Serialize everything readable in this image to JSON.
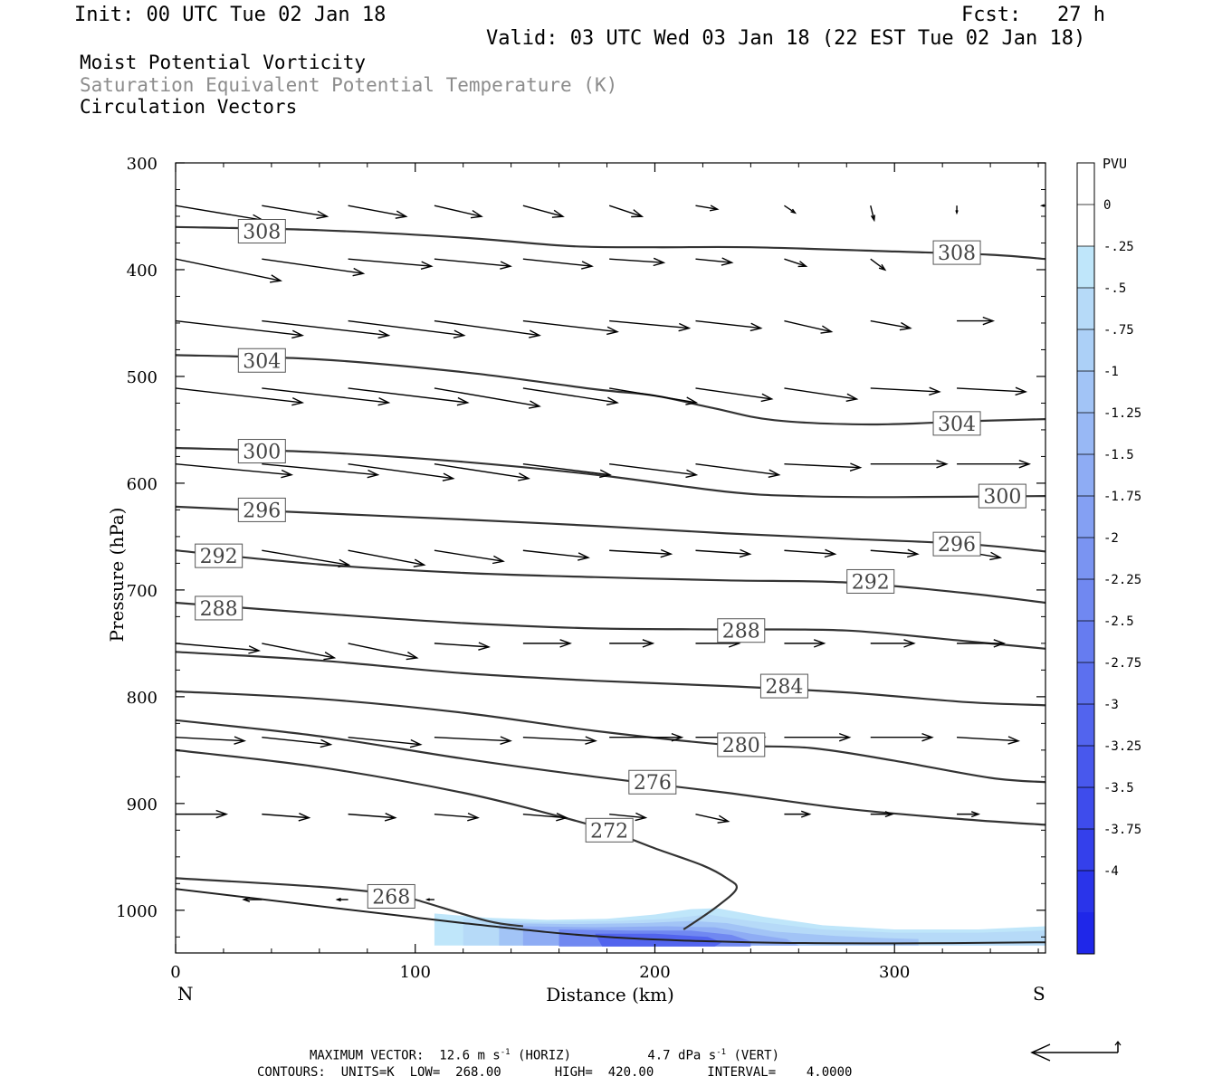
{
  "header": {
    "init": "Init: 00 UTC Tue 02 Jan 18",
    "fcst_label": "Fcst:",
    "fcst_value": "27 h",
    "valid": "Valid: 03 UTC Wed 03 Jan 18 (22 EST Tue 02 Jan 18)"
  },
  "fields": [
    {
      "name": "Moist Potential Vorticity",
      "color": "#000000"
    },
    {
      "name": "Saturation Equivalent Potential Temperature (K)",
      "color": "#8c8c8c"
    },
    {
      "name": "Circulation Vectors",
      "color": "#000000"
    }
  ],
  "footer": {
    "max_vector_label": "MAXIMUM VECTOR:",
    "horiz_value": "12.6 m s",
    "horiz_exp": "-1",
    "horiz_unit": "(HORIZ)",
    "vert_value": "4.7 dPa s",
    "vert_exp": "-1",
    "vert_unit": "(VERT)",
    "contours_line": "CONTOURS:  UNITS=K  LOW=  268.00       HIGH=  420.00       INTERVAL=    4.0000"
  },
  "chart_data": {
    "type": "cross-section",
    "xlabel": "Distance (km)",
    "ylabel": "Pressure (hPa)",
    "xlim": [
      0,
      363
    ],
    "ylim_pressure": [
      300,
      1040
    ],
    "x_ticks": [
      0,
      100,
      200,
      300
    ],
    "y_ticks": [
      300,
      400,
      500,
      600,
      700,
      800,
      900,
      1000
    ],
    "left_end_label": "N",
    "right_end_label": "S",
    "colorbar": {
      "title": "PVU",
      "labels": [
        "0",
        "-.25",
        "-.5",
        "-.75",
        "-1",
        "-1.25",
        "-1.5",
        "-1.75",
        "-2",
        "-2.25",
        "-2.5",
        "-2.75",
        "-3",
        "-3.25",
        "-3.5",
        "-3.75",
        "-4"
      ],
      "colors": [
        "#ffffff",
        "#ffffff",
        "#bfe6fa",
        "#b6daf8",
        "#acd0f7",
        "#a2c4f6",
        "#98b8f5",
        "#8eacf4",
        "#84a0f3",
        "#7a94f2",
        "#7088f1",
        "#667cf0",
        "#5c70ef",
        "#5264ee",
        "#4858ed",
        "#3e4cec",
        "#3440eb",
        "#2a34ea",
        "#1f27e9"
      ]
    },
    "theta_contours": [
      {
        "value": 308,
        "points": [
          [
            0,
            360
          ],
          [
            60,
            363
          ],
          [
            120,
            370
          ],
          [
            165,
            378
          ],
          [
            200,
            379
          ],
          [
            240,
            379
          ],
          [
            300,
            383
          ],
          [
            340,
            386
          ],
          [
            363,
            390
          ]
        ],
        "labels": [
          [
            36,
            364
          ],
          [
            326,
            384
          ]
        ]
      },
      {
        "value": 304,
        "points": [
          [
            0,
            480
          ],
          [
            60,
            484
          ],
          [
            120,
            496
          ],
          [
            175,
            512
          ],
          [
            200,
            518
          ],
          [
            225,
            530
          ],
          [
            250,
            541
          ],
          [
            290,
            545
          ],
          [
            330,
            542
          ],
          [
            363,
            540
          ]
        ],
        "labels": [
          [
            36,
            485
          ],
          [
            326,
            544
          ]
        ]
      },
      {
        "value": 300,
        "points": [
          [
            0,
            567
          ],
          [
            60,
            571
          ],
          [
            120,
            580
          ],
          [
            175,
            592
          ],
          [
            230,
            608
          ],
          [
            260,
            612
          ],
          [
            300,
            613
          ],
          [
            363,
            612
          ]
        ],
        "labels": [
          [
            36,
            570
          ],
          [
            345,
            612
          ]
        ]
      },
      {
        "value": 296,
        "points": [
          [
            0,
            622
          ],
          [
            60,
            628
          ],
          [
            120,
            634
          ],
          [
            175,
            640
          ],
          [
            230,
            647
          ],
          [
            280,
            652
          ],
          [
            330,
            657
          ],
          [
            363,
            664
          ]
        ],
        "labels": [
          [
            36,
            625
          ],
          [
            326,
            657
          ]
        ]
      },
      {
        "value": 292,
        "points": [
          [
            0,
            663
          ],
          [
            60,
            676
          ],
          [
            120,
            684
          ],
          [
            175,
            688
          ],
          [
            230,
            691
          ],
          [
            280,
            693
          ],
          [
            330,
            703
          ],
          [
            363,
            712
          ]
        ],
        "labels": [
          [
            18,
            668
          ],
          [
            290,
            692
          ]
        ]
      },
      {
        "value": 288,
        "points": [
          [
            0,
            712
          ],
          [
            60,
            722
          ],
          [
            120,
            731
          ],
          [
            175,
            736
          ],
          [
            230,
            737
          ],
          [
            280,
            738
          ],
          [
            330,
            748
          ],
          [
            363,
            755
          ]
        ],
        "labels": [
          [
            18,
            717
          ],
          [
            236,
            738
          ]
        ]
      },
      {
        "value": 284,
        "points": [
          [
            0,
            758
          ],
          [
            60,
            766
          ],
          [
            120,
            778
          ],
          [
            175,
            785
          ],
          [
            230,
            790
          ],
          [
            280,
            796
          ],
          [
            330,
            805
          ],
          [
            363,
            808
          ]
        ],
        "labels": [
          [
            254,
            790
          ]
        ]
      },
      {
        "value": 280,
        "points": [
          [
            0,
            795
          ],
          [
            60,
            802
          ],
          [
            120,
            815
          ],
          [
            175,
            832
          ],
          [
            230,
            845
          ],
          [
            265,
            848
          ],
          [
            300,
            860
          ],
          [
            340,
            876
          ],
          [
            363,
            880
          ]
        ],
        "labels": [
          [
            236,
            845
          ]
        ]
      },
      {
        "value": 276,
        "points": [
          [
            0,
            822
          ],
          [
            60,
            837
          ],
          [
            120,
            858
          ],
          [
            175,
            875
          ],
          [
            230,
            890
          ],
          [
            280,
            905
          ],
          [
            330,
            915
          ],
          [
            363,
            920
          ]
        ],
        "labels": [
          [
            199,
            880
          ]
        ]
      },
      {
        "value": 272,
        "points": [
          [
            0,
            850
          ],
          [
            60,
            866
          ],
          [
            120,
            890
          ],
          [
            160,
            912
          ],
          [
            180,
            925
          ],
          [
            200,
            942
          ],
          [
            220,
            958
          ],
          [
            230,
            970
          ],
          [
            234,
            980
          ],
          [
            225,
            998
          ],
          [
            212,
            1018
          ]
        ],
        "labels": [
          [
            181,
            925
          ]
        ]
      },
      {
        "value": 268,
        "points": [
          [
            0,
            970
          ],
          [
            60,
            978
          ],
          [
            90,
            985
          ],
          [
            100,
            990
          ],
          [
            130,
            1010
          ],
          [
            145,
            1015
          ]
        ],
        "labels": [
          [
            90,
            987
          ]
        ]
      }
    ],
    "ground_line": [
      [
        0,
        980
      ],
      [
        120,
        1012
      ],
      [
        180,
        1025
      ],
      [
        240,
        1030
      ],
      [
        300,
        1031
      ],
      [
        363,
        1030
      ]
    ],
    "pv_shading": [
      {
        "level": -0.25,
        "points": [
          [
            108,
            1003
          ],
          [
            130,
            1007
          ],
          [
            155,
            1009
          ],
          [
            180,
            1008
          ],
          [
            200,
            1004
          ],
          [
            215,
            999
          ],
          [
            226,
            998
          ],
          [
            245,
            1006
          ],
          [
            270,
            1014
          ],
          [
            300,
            1018
          ],
          [
            335,
            1018
          ],
          [
            363,
            1015
          ],
          [
            363,
            1033
          ],
          [
            108,
            1033
          ]
        ]
      },
      {
        "level": -0.5,
        "points": [
          [
            120,
            1008
          ],
          [
            150,
            1011
          ],
          [
            185,
            1010
          ],
          [
            205,
            1008
          ],
          [
            222,
            1004
          ],
          [
            240,
            1010
          ],
          [
            270,
            1018
          ],
          [
            300,
            1021
          ],
          [
            335,
            1021
          ],
          [
            363,
            1019
          ],
          [
            363,
            1033
          ],
          [
            120,
            1033
          ]
        ]
      },
      {
        "level": -1,
        "points": [
          [
            135,
            1012
          ],
          [
            165,
            1013
          ],
          [
            195,
            1012
          ],
          [
            215,
            1010
          ],
          [
            230,
            1012
          ],
          [
            250,
            1020
          ],
          [
            275,
            1024
          ],
          [
            295,
            1026
          ],
          [
            310,
            1027
          ],
          [
            310,
            1033
          ],
          [
            135,
            1033
          ]
        ]
      },
      {
        "level": -1.5,
        "points": [
          [
            145,
            1015
          ],
          [
            175,
            1016
          ],
          [
            205,
            1015
          ],
          [
            225,
            1016
          ],
          [
            240,
            1022
          ],
          [
            255,
            1027
          ],
          [
            260,
            1033
          ],
          [
            145,
            1033
          ]
        ]
      },
      {
        "level": -2.25,
        "points": [
          [
            160,
            1018
          ],
          [
            190,
            1019
          ],
          [
            215,
            1019
          ],
          [
            232,
            1023
          ],
          [
            240,
            1029
          ],
          [
            240,
            1034
          ],
          [
            160,
            1034
          ]
        ]
      },
      {
        "level": -3,
        "points": [
          [
            175,
            1022
          ],
          [
            200,
            1022
          ],
          [
            222,
            1025
          ],
          [
            228,
            1030
          ],
          [
            225,
            1034
          ],
          [
            178,
            1034
          ]
        ]
      }
    ],
    "vector_rows": [
      {
        "p": 340,
        "x": [
          0,
          36,
          72,
          108,
          145,
          181,
          217,
          254,
          290,
          326,
          363
        ],
        "u": [
          24,
          18,
          16,
          13,
          11,
          9,
          6,
          3,
          1,
          0,
          -1
        ],
        "w": [
          4,
          3,
          3,
          3,
          3,
          3,
          1,
          2,
          4,
          2,
          0
        ]
      },
      {
        "p": 390,
        "x": [
          0,
          36,
          72,
          108,
          145,
          181,
          217,
          254,
          290,
          326
        ],
        "u": [
          29,
          28,
          23,
          21,
          19,
          15,
          10,
          6,
          4,
          3
        ],
        "w": [
          6,
          4,
          2,
          2,
          2,
          1,
          1,
          2,
          3,
          1
        ]
      },
      {
        "p": 448,
        "x": [
          0,
          36,
          72,
          108,
          145,
          181,
          217,
          254,
          290,
          326
        ],
        "u": [
          35,
          35,
          32,
          29,
          26,
          22,
          18,
          13,
          11,
          10
        ],
        "w": [
          4,
          4,
          4,
          4,
          3,
          2,
          2,
          3,
          2,
          0
        ]
      },
      {
        "p": 511,
        "x": [
          0,
          36,
          72,
          108,
          145,
          181,
          217,
          254,
          290,
          326
        ],
        "u": [
          35,
          35,
          33,
          29,
          26,
          24,
          21,
          20,
          19,
          19
        ],
        "w": [
          4,
          4,
          4,
          5,
          4,
          4,
          3,
          3,
          1,
          1
        ]
      },
      {
        "p": 582,
        "x": [
          0,
          36,
          72,
          108,
          145,
          181,
          217,
          254,
          290,
          326
        ],
        "u": [
          32,
          32,
          29,
          26,
          24,
          24,
          23,
          21,
          21,
          20
        ],
        "w": [
          3,
          3,
          4,
          4,
          3,
          3,
          3,
          1,
          0,
          0
        ]
      },
      {
        "p": 663,
        "x": [
          36,
          72,
          108,
          145,
          181,
          217,
          254,
          290,
          326
        ],
        "u": [
          24,
          21,
          19,
          18,
          17,
          15,
          14,
          13,
          12
        ],
        "w": [
          4,
          4,
          3,
          2,
          1,
          1,
          1,
          1,
          2
        ]
      },
      {
        "p": 750,
        "x": [
          0,
          36,
          72,
          108,
          145,
          181,
          217,
          254,
          290,
          326
        ],
        "u": [
          23,
          20,
          19,
          15,
          13,
          12,
          12,
          11,
          12,
          13
        ],
        "w": [
          2,
          4,
          4,
          1,
          0,
          0,
          0,
          0,
          0,
          0
        ]
      },
      {
        "p": 838,
        "x": [
          0,
          36,
          72,
          108,
          145,
          181,
          217,
          254,
          290,
          326
        ],
        "u": [
          19,
          19,
          20,
          21,
          20,
          20,
          19,
          18,
          17,
          17
        ],
        "w": [
          1,
          2,
          2,
          1,
          1,
          0,
          0,
          0,
          0,
          1
        ]
      },
      {
        "p": 910,
        "x": [
          0,
          36,
          72,
          108,
          145,
          181,
          217,
          254,
          290,
          326
        ],
        "u": [
          14,
          13,
          13,
          12,
          12,
          10,
          9,
          7,
          6,
          6
        ],
        "w": [
          0,
          1,
          1,
          1,
          1,
          1,
          2,
          0,
          0,
          0
        ]
      },
      {
        "p": 990,
        "x": [
          36,
          72,
          108,
          145,
          181,
          217,
          254,
          290,
          326
        ],
        "u": [
          -5,
          -3,
          -2,
          0,
          0,
          0,
          0,
          0,
          0
        ],
        "w": [
          0,
          0,
          0,
          0,
          0,
          0,
          0,
          0,
          0
        ]
      }
    ]
  }
}
